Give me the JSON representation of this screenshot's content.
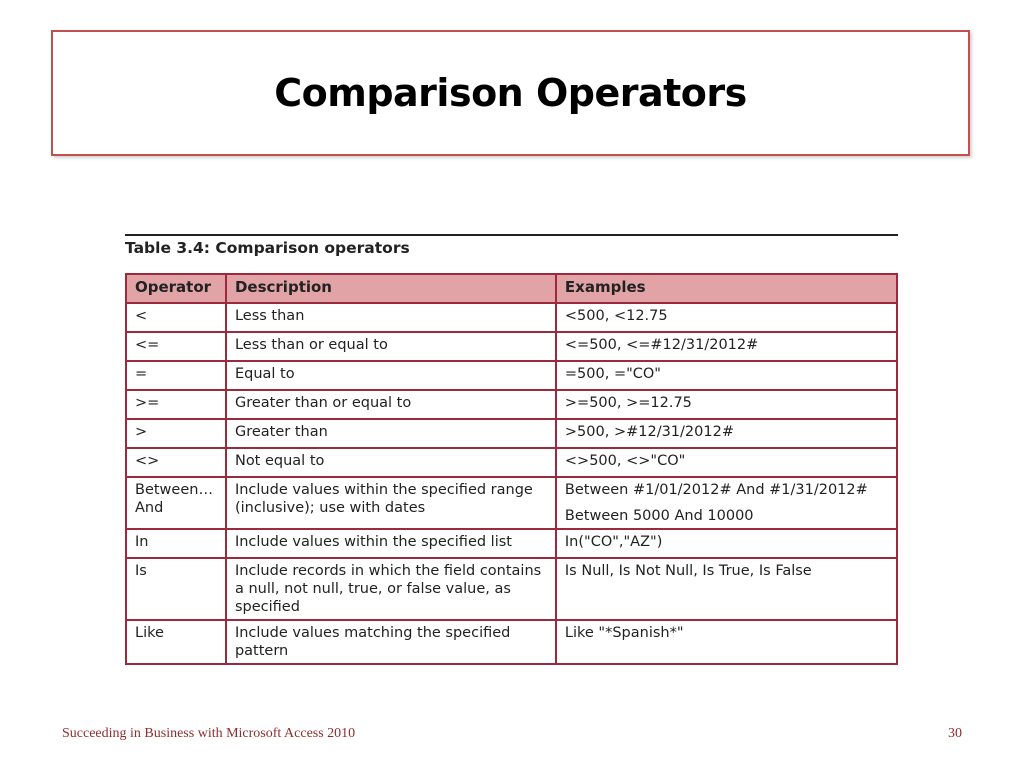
{
  "slide": {
    "title": "Comparison Operators"
  },
  "table": {
    "caption": "Table 3.4: Comparison operators",
    "headers": [
      "Operator",
      "Description",
      "Examples"
    ],
    "rows": [
      {
        "operator": "<",
        "description": "Less than",
        "examples": [
          "<500, <12.75"
        ]
      },
      {
        "operator": "<=",
        "description": "Less than or equal to",
        "examples": [
          "<=500, <=#12/31/2012#"
        ]
      },
      {
        "operator": "=",
        "description": "Equal to",
        "examples": [
          "=500, =\"CO\""
        ]
      },
      {
        "operator": ">=",
        "description": "Greater than or equal to",
        "examples": [
          ">=500, >=12.75"
        ]
      },
      {
        "operator": ">",
        "description": "Greater than",
        "examples": [
          ">500, >#12/31/2012#"
        ]
      },
      {
        "operator": "<>",
        "description": "Not equal to",
        "examples": [
          "<>500, <>\"CO\""
        ]
      },
      {
        "operator": "Between… And",
        "description": "Include values within the specified range (inclusive); use with dates",
        "examples": [
          "Between #1/01/2012# And #1/31/2012#",
          "Between 5000 And 10000"
        ]
      },
      {
        "operator": "In",
        "description": "Include values within the specified list",
        "examples": [
          "In(\"CO\",\"AZ\")"
        ]
      },
      {
        "operator": "Is",
        "description": "Include records in which the field contains a null, not null, true, or false value, as specified",
        "examples": [
          "Is Null, Is Not Null, Is True, Is False"
        ]
      },
      {
        "operator": "Like",
        "description": "Include values matching the specified pattern",
        "examples": [
          "Like \"*Spanish*\""
        ]
      }
    ]
  },
  "footer": {
    "text": "Succeeding in Business with Microsoft Access 2010",
    "page_number": "30"
  },
  "colors": {
    "title_border": "#c0504d",
    "table_border": "#9c2a3e",
    "header_fill": "#e2a3a6",
    "footer_text": "#8e2e2c"
  }
}
